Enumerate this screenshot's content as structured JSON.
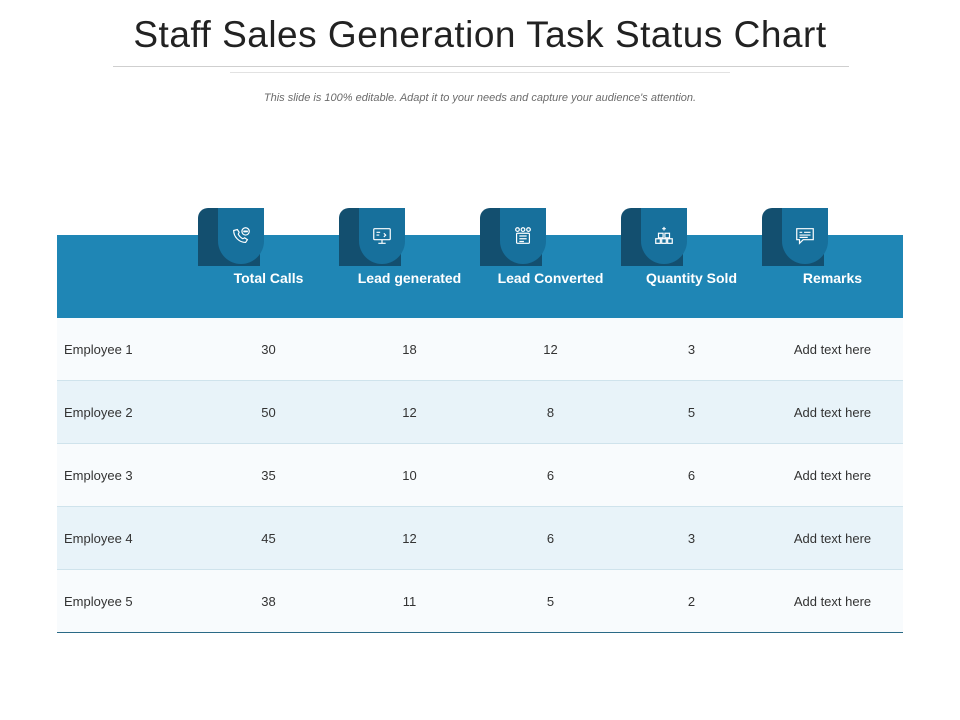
{
  "title": "Staff Sales Generation Task Status Chart",
  "subtitle": "This slide is 100% editable. Adapt it to your needs and capture your audience's attention.",
  "colors": {
    "header_bg": "#1f86b5",
    "tab_dark": "#134f6f",
    "tab_icon": "#17709c",
    "row_alt": "#e8f3f9"
  },
  "table": {
    "columns": [
      {
        "label": "Total Calls",
        "icon": "phone-chat-icon"
      },
      {
        "label": "Lead generated",
        "icon": "monitor-icon"
      },
      {
        "label": "Lead Converted",
        "icon": "people-board-icon"
      },
      {
        "label": "Quantity Sold",
        "icon": "boxes-stack-icon"
      },
      {
        "label": "Remarks",
        "icon": "message-card-icon"
      }
    ],
    "rows": [
      {
        "name": "Employee 1",
        "values": [
          "30",
          "18",
          "12",
          "3",
          "Add text here"
        ]
      },
      {
        "name": "Employee 2",
        "values": [
          "50",
          "12",
          "8",
          "5",
          "Add text here"
        ]
      },
      {
        "name": "Employee 3",
        "values": [
          "35",
          "10",
          "6",
          "6",
          "Add text here"
        ]
      },
      {
        "name": "Employee 4",
        "values": [
          "45",
          "12",
          "6",
          "3",
          "Add text here"
        ]
      },
      {
        "name": "Employee 5",
        "values": [
          "38",
          "11",
          "5",
          "2",
          "Add text here"
        ]
      }
    ]
  }
}
